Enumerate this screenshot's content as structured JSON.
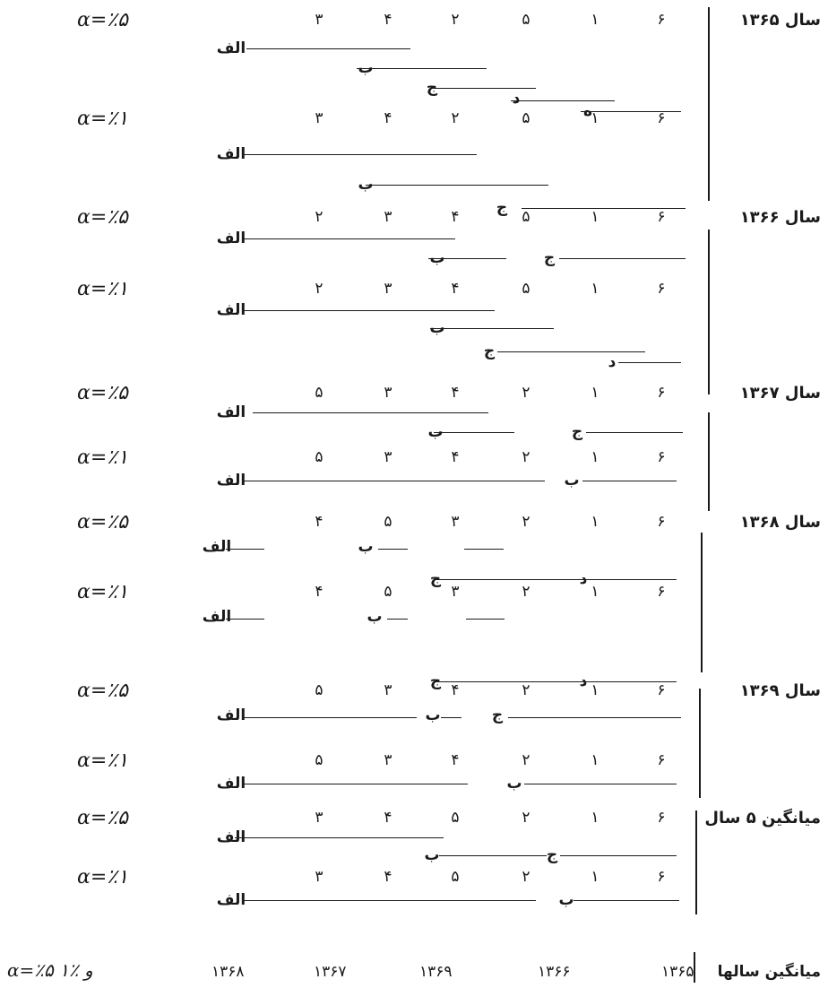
{
  "blocks": [
    {
      "year": "سال ۱۳۶۵",
      "alpha": "α=٪۵",
      "nums": [
        "۳",
        "۴",
        "۲",
        "۵",
        "۱",
        "۶"
      ],
      "labels": [
        "الف",
        "ب",
        "ج",
        "د",
        "ه"
      ]
    },
    {
      "alpha": "α=٪۱",
      "nums": [
        "۳",
        "۴",
        "۲",
        "۵",
        "۱",
        "۶"
      ],
      "labels": [
        "الف",
        "ب",
        "ج"
      ]
    },
    {
      "year": "سال ۱۳۶۶",
      "alpha": "α=٪۵",
      "nums": [
        "۲",
        "۳",
        "۴",
        "۵",
        "۱",
        "۶"
      ],
      "labels": [
        "الف",
        "ب",
        "ج"
      ]
    },
    {
      "alpha": "α=٪۱",
      "nums": [
        "۲",
        "۳",
        "۴",
        "۵",
        "۱",
        "۶"
      ],
      "labels": [
        "الف",
        "ب",
        "ج",
        "د"
      ]
    },
    {
      "year": "سال ۱۳۶۷",
      "alpha": "α=٪۵",
      "nums": [
        "۵",
        "۳",
        "۴",
        "۲",
        "۱",
        "۶"
      ],
      "labels": [
        "الف",
        "ب",
        "ج"
      ]
    },
    {
      "alpha": "α=٪۱",
      "nums": [
        "۵",
        "۳",
        "۴",
        "۲",
        "۱",
        "۶"
      ],
      "labels": [
        "الف",
        "ب"
      ]
    },
    {
      "year": "سال ۱۳۶۸",
      "alpha": "α=٪۵",
      "nums": [
        "۴",
        "۵",
        "۳",
        "۲",
        "۱",
        "۶"
      ],
      "labels": [
        "الف",
        "ب",
        "ج",
        "د"
      ]
    },
    {
      "alpha": "α=٪۱",
      "nums": [
        "۴",
        "۵",
        "۳",
        "۲",
        "۱",
        "۶"
      ],
      "labels": [
        "الف",
        "ب",
        "ج",
        "د"
      ]
    },
    {
      "year": "سال ۱۳۶۹",
      "alpha": "α=٪۵",
      "nums": [
        "۵",
        "۳",
        "۴",
        "۲",
        "۱",
        "۶"
      ],
      "labels": [
        "الف",
        "ب",
        "ج"
      ]
    },
    {
      "alpha": "α=٪۱",
      "nums": [
        "۵",
        "۳",
        "۴",
        "۲",
        "۱",
        "۶"
      ],
      "labels": [
        "الف",
        "ب"
      ]
    },
    {
      "year": "میانگین ۵ سال",
      "alpha": "α=٪۵",
      "nums": [
        "۳",
        "۴",
        "۵",
        "۲",
        "۱",
        "۶"
      ],
      "labels": [
        "الف",
        "ب",
        "ج"
      ]
    },
    {
      "alpha": "α=٪۱",
      "nums": [
        "۳",
        "۴",
        "۵",
        "۲",
        "۱",
        "۶"
      ],
      "labels": [
        "الف",
        "ب"
      ]
    }
  ],
  "footer": {
    "label": "میانگین سالها",
    "years": [
      "۱۳۶۵",
      "۱۳۶۶",
      "۱۳۶۹",
      "۱۳۶۷",
      "۱۳۶۸"
    ],
    "alpha": "α=٪۵ و ٪۱"
  }
}
